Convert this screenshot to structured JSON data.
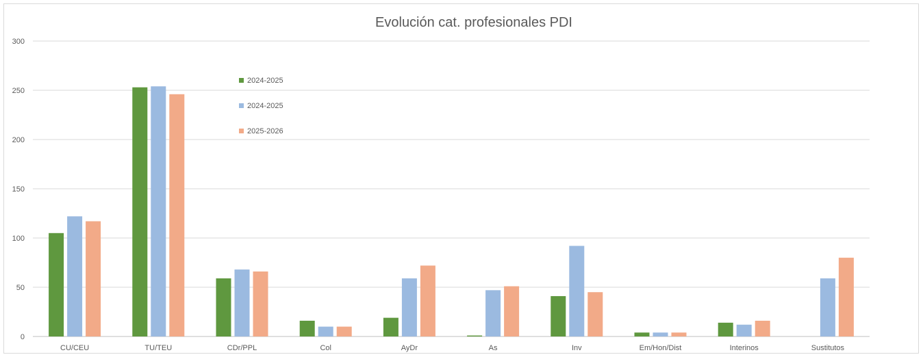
{
  "chart_data": {
    "type": "bar",
    "title": "Evolución cat. profesionales PDI",
    "xlabel": "",
    "ylabel": "",
    "ylim": [
      0,
      300
    ],
    "yticks": [
      0,
      50,
      100,
      150,
      200,
      250,
      300
    ],
    "grid": true,
    "legend_position": "top-left inside plot",
    "categories": [
      "CU/CEU",
      "TU/TEU",
      "CDr/PPL",
      "Col",
      "AyDr",
      "As",
      "Inv",
      "Em/Hon/Dist",
      "Interinos",
      "Sustitutos"
    ],
    "series": [
      {
        "name": "2024-2025",
        "color": "#5f983f",
        "values": [
          105,
          253,
          59,
          16,
          19,
          1,
          41,
          4,
          14,
          0
        ]
      },
      {
        "name": "2024-2025",
        "color": "#9bbae0",
        "values": [
          122,
          254,
          68,
          10,
          59,
          47,
          92,
          4,
          12,
          59
        ]
      },
      {
        "name": "2025-2026",
        "color": "#f2aa88",
        "values": [
          117,
          246,
          66,
          10,
          72,
          51,
          45,
          4,
          16,
          80
        ]
      }
    ]
  }
}
